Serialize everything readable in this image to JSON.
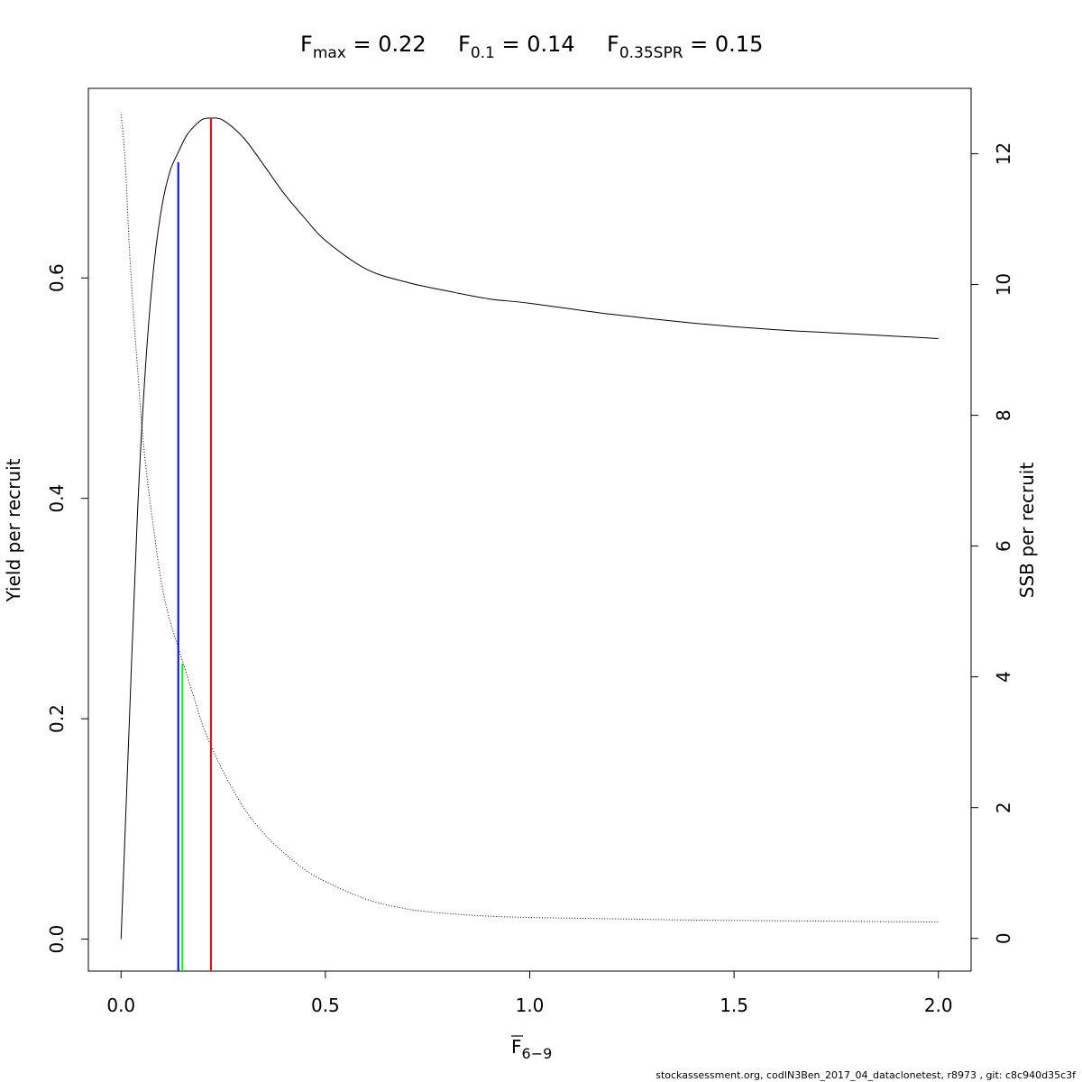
{
  "chart_data": {
    "type": "line",
    "title": {
      "fmax": {
        "base": "F",
        "sub": "max",
        "text": " = 0.22"
      },
      "f01": {
        "base": "F",
        "sub": "0.1",
        "text": " = 0.14"
      },
      "f35spr": {
        "base": "F",
        "sub": "0.35SPR",
        "text": " = 0.15"
      }
    },
    "xlabel": {
      "base": "F",
      "sub": "6−9",
      "overline": true
    },
    "ylabel_left": "Yield per recruit",
    "ylabel_right": "SSB per recruit",
    "xlim": [
      -0.08,
      2.08
    ],
    "ylim_left": [
      -0.029,
      0.772
    ],
    "ylim_right": [
      -0.5,
      13.0
    ],
    "xticks": [
      0.0,
      0.5,
      1.0,
      1.5,
      2.0
    ],
    "xtick_labels": [
      "0.0",
      "0.5",
      "1.0",
      "1.5",
      "2.0"
    ],
    "yticks_left": [
      0.0,
      0.2,
      0.4,
      0.6
    ],
    "ytick_labels_left": [
      "0.0",
      "0.2",
      "0.4",
      "0.6"
    ],
    "yticks_right": [
      0,
      2,
      4,
      6,
      8,
      10,
      12
    ],
    "ytick_labels_right": [
      "0",
      "2",
      "4",
      "6",
      "8",
      "10",
      "12"
    ],
    "grid": false,
    "series": [
      {
        "axis": "left",
        "style": "solid",
        "color": "#000000",
        "x": [
          0.0,
          0.02,
          0.04,
          0.06,
          0.08,
          0.1,
          0.12,
          0.14,
          0.16,
          0.18,
          0.2,
          0.22,
          0.25,
          0.3,
          0.35,
          0.4,
          0.45,
          0.5,
          0.6,
          0.7,
          0.8,
          0.9,
          1.0,
          1.2,
          1.4,
          1.6,
          1.8,
          2.0
        ],
        "values": [
          0.0,
          0.195,
          0.385,
          0.52,
          0.61,
          0.665,
          0.697,
          0.714,
          0.729,
          0.738,
          0.744,
          0.745,
          0.743,
          0.727,
          0.702,
          0.676,
          0.654,
          0.634,
          0.608,
          0.596,
          0.588,
          0.581,
          0.577,
          0.567,
          0.559,
          0.553,
          0.549,
          0.545
        ]
      },
      {
        "axis": "right",
        "style": "dotted",
        "color": "#000000",
        "x": [
          0.0,
          0.01,
          0.02,
          0.03,
          0.04,
          0.05,
          0.06,
          0.08,
          0.1,
          0.12,
          0.14,
          0.16,
          0.18,
          0.2,
          0.22,
          0.25,
          0.3,
          0.35,
          0.4,
          0.45,
          0.5,
          0.6,
          0.7,
          0.8,
          0.9,
          1.0,
          1.2,
          1.4,
          1.6,
          1.8,
          2.0
        ],
        "values": [
          12.6,
          11.9,
          10.6,
          9.6,
          8.75,
          7.9,
          7.25,
          6.25,
          5.4,
          4.85,
          4.45,
          4.05,
          3.65,
          3.25,
          2.95,
          2.55,
          2.0,
          1.6,
          1.3,
          1.05,
          0.87,
          0.6,
          0.45,
          0.38,
          0.34,
          0.32,
          0.3,
          0.28,
          0.27,
          0.26,
          0.25
        ]
      }
    ],
    "reference_lines": [
      {
        "label": "Fmax",
        "x": 0.22,
        "axis": "left",
        "y_top": 0.745,
        "color": "#ff0000"
      },
      {
        "label": "F0.1",
        "x": 0.14,
        "axis": "left",
        "y_top": 0.705,
        "color": "#0000ff"
      },
      {
        "label": "F0.35SPR",
        "x": 0.15,
        "axis": "left",
        "y_top": 0.25,
        "color": "#00ff00"
      }
    ]
  },
  "footer": "stockassessment.org, codIN3Ben_2017_04_dataclonetest, r8973 , git: c8c940d35c3f"
}
